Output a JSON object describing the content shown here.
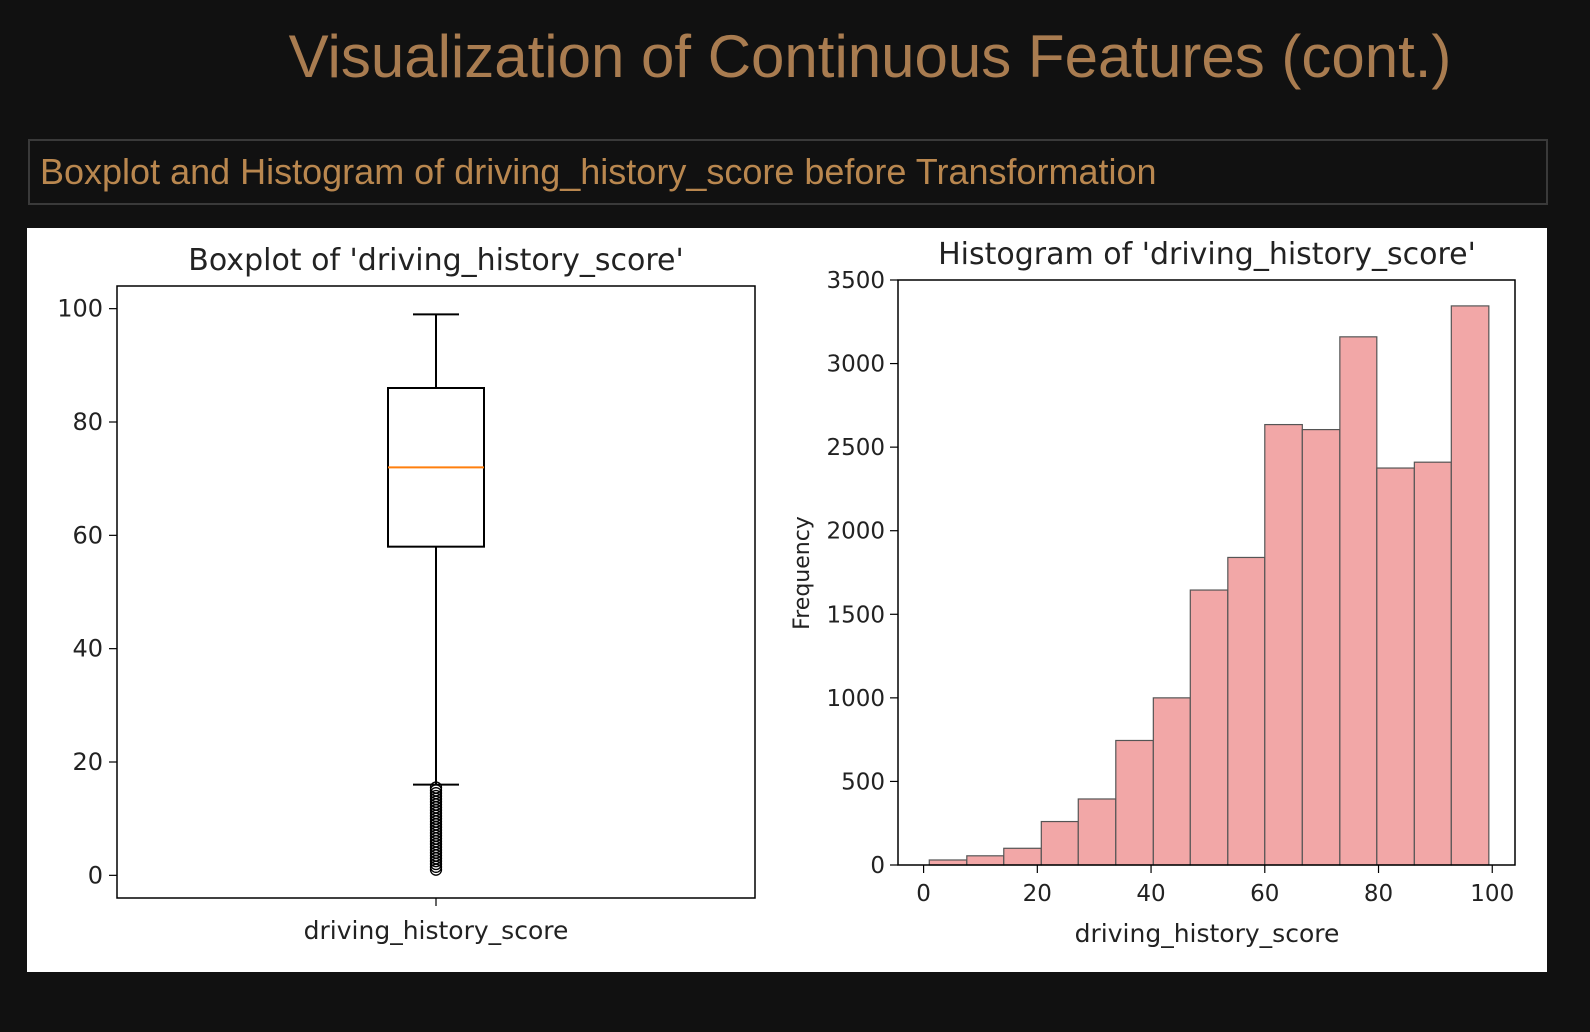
{
  "slide": {
    "title": "Visualization of Continuous Features (cont.)",
    "subtitle": "Boxplot and Histogram of driving_history_score before Transformation"
  },
  "colors": {
    "background": "#111111",
    "title": "#a97c50",
    "subtitle": "#b9874f",
    "median": "#ff7f0e",
    "hist_fill": "#f2a7a7",
    "hist_edge": "#555555"
  },
  "chart_data": [
    {
      "type": "boxplot",
      "title": "Boxplot of 'driving_history_score'",
      "xlabel": "driving_history_score",
      "ylabel": "",
      "ylim": [
        -4,
        104
      ],
      "yticks": [
        0,
        20,
        40,
        60,
        80,
        100
      ],
      "box": {
        "whisker_low": 16,
        "q1": 58,
        "median": 72,
        "q3": 86,
        "whisker_high": 99
      },
      "outliers": [
        1,
        1.5,
        2,
        2.5,
        3,
        3.5,
        4,
        4.5,
        5,
        5.5,
        6,
        6.5,
        7,
        7.5,
        8,
        8.5,
        9,
        9.5,
        10,
        10.5,
        11,
        11.5,
        12,
        12.5,
        13,
        13.5,
        14,
        14.5,
        15,
        15.5
      ]
    },
    {
      "type": "bar",
      "title": "Histogram of 'driving_history_score'",
      "xlabel": "driving_history_score",
      "ylabel": "Frequency",
      "xlim": [
        -4.5,
        104
      ],
      "ylim": [
        0,
        3500
      ],
      "xticks": [
        0,
        20,
        40,
        60,
        80,
        100
      ],
      "yticks": [
        0,
        500,
        1000,
        1500,
        2000,
        2500,
        3000,
        3500
      ],
      "bins": [
        {
          "x0": 1,
          "x1": 7.6,
          "value": 30
        },
        {
          "x0": 7.6,
          "x1": 14.1,
          "value": 55
        },
        {
          "x0": 14.1,
          "x1": 20.7,
          "value": 100
        },
        {
          "x0": 20.7,
          "x1": 27.2,
          "value": 260
        },
        {
          "x0": 27.2,
          "x1": 33.8,
          "value": 395
        },
        {
          "x0": 33.8,
          "x1": 40.4,
          "value": 745
        },
        {
          "x0": 40.4,
          "x1": 46.9,
          "value": 1000
        },
        {
          "x0": 46.9,
          "x1": 53.5,
          "value": 1645
        },
        {
          "x0": 53.5,
          "x1": 60.0,
          "value": 1840
        },
        {
          "x0": 60.0,
          "x1": 66.6,
          "value": 2635
        },
        {
          "x0": 66.6,
          "x1": 73.2,
          "value": 2605
        },
        {
          "x0": 73.2,
          "x1": 79.7,
          "value": 3160
        },
        {
          "x0": 79.7,
          "x1": 86.3,
          "value": 2375
        },
        {
          "x0": 86.3,
          "x1": 92.8,
          "value": 2410
        },
        {
          "x0": 92.8,
          "x1": 99.4,
          "value": 3345
        }
      ]
    }
  ]
}
